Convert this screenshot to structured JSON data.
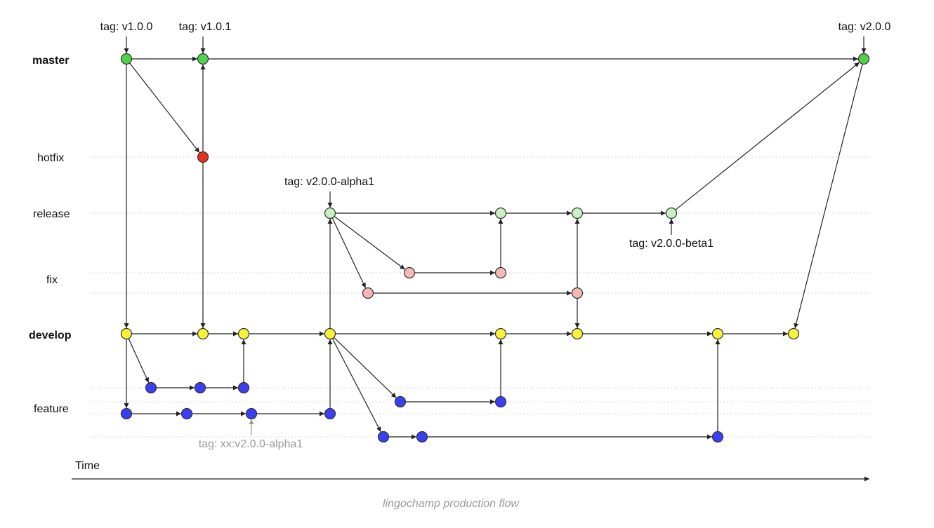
{
  "lanes": [
    {
      "id": "master",
      "label": "master",
      "bold": true
    },
    {
      "id": "hotfix",
      "label": "hotfix",
      "bold": false
    },
    {
      "id": "release",
      "label": "release",
      "bold": false
    },
    {
      "id": "fix",
      "label": "fix",
      "bold": false
    },
    {
      "id": "develop",
      "label": "develop",
      "bold": true
    },
    {
      "id": "feature",
      "label": "feature",
      "bold": false
    }
  ],
  "tags": [
    {
      "id": "t100",
      "text": "tag: v1.0.0",
      "node": "m1",
      "side": "above",
      "muted": false
    },
    {
      "id": "t101",
      "text": "tag: v1.0.1",
      "node": "m2",
      "side": "above",
      "muted": false
    },
    {
      "id": "t200",
      "text": "tag: v2.0.0",
      "node": "m3",
      "side": "above",
      "muted": false
    },
    {
      "id": "ta1",
      "text": "tag: v2.0.0-alpha1",
      "node": "r1",
      "side": "above",
      "muted": false
    },
    {
      "id": "tb1",
      "text": "tag: v2.0.0-beta1",
      "node": "r4",
      "side": "below",
      "muted": false
    },
    {
      "id": "txx",
      "text": "tag: xx:v2.0.0-alpha1",
      "node": "fb3",
      "side": "below",
      "muted": true
    }
  ],
  "axis": {
    "label": "Time"
  },
  "caption": "lingochamp production flow",
  "colors": {
    "master": "#52d14b",
    "hotfix": "#e8301f",
    "release": "#c8f0c4",
    "fix": "#f3b9b6",
    "develop": "#f7f23a",
    "feature": "#3a3ff2",
    "lane_line": "#d6d6d6",
    "muted_text": "#9a9a9a"
  }
}
